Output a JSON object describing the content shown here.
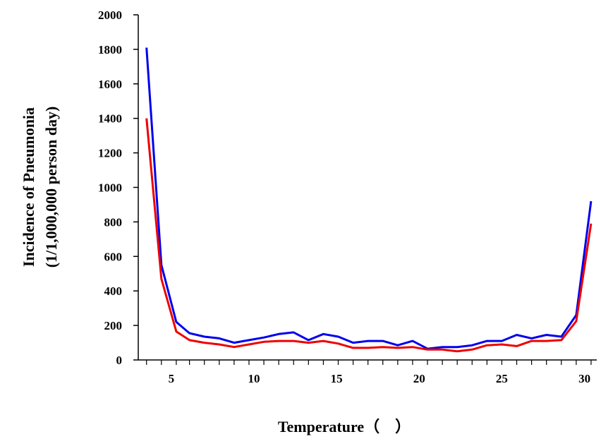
{
  "chart_data": {
    "type": "line",
    "xlabel": "Temperature（　）",
    "ylabel_lines": [
      "Incidence of Pneumonia",
      "(1/1,000,000 person day)"
    ],
    "xlim": [
      3.0,
      31.0
    ],
    "ylim": [
      0,
      2000
    ],
    "xticks": [
      5,
      10,
      15,
      20,
      25,
      30
    ],
    "yticks": [
      0,
      200,
      400,
      600,
      800,
      1000,
      1200,
      1400,
      1600,
      1800,
      2000
    ],
    "grid": false,
    "series": [
      {
        "color": "#0000ee",
        "x": [
          3.5,
          4.4,
          5.3,
          6.1,
          7.0,
          7.9,
          8.8,
          9.7,
          10.6,
          11.5,
          12.4,
          13.3,
          14.2,
          15.1,
          16.0,
          16.9,
          17.8,
          18.7,
          19.6,
          20.5,
          21.4,
          22.3,
          23.2,
          24.1,
          25.0,
          25.9,
          26.8,
          27.7,
          28.6,
          29.5,
          30.4
        ],
        "y": [
          1810,
          550,
          220,
          155,
          135,
          125,
          100,
          115,
          130,
          150,
          160,
          115,
          150,
          135,
          100,
          110,
          110,
          85,
          110,
          65,
          75,
          75,
          85,
          110,
          110,
          145,
          125,
          145,
          135,
          260,
          920
        ]
      },
      {
        "color": "#ee0000",
        "x": [
          3.5,
          4.4,
          5.3,
          6.1,
          7.0,
          7.9,
          8.8,
          9.7,
          10.6,
          11.5,
          12.4,
          13.3,
          14.2,
          15.1,
          16.0,
          16.9,
          17.8,
          18.7,
          19.6,
          20.5,
          21.4,
          22.3,
          23.2,
          24.1,
          25.0,
          25.9,
          26.8,
          27.7,
          28.6,
          29.5,
          30.4
        ],
        "y": [
          1400,
          470,
          165,
          115,
          100,
          90,
          75,
          90,
          105,
          110,
          110,
          100,
          110,
          95,
          70,
          70,
          75,
          70,
          75,
          60,
          60,
          50,
          60,
          85,
          90,
          80,
          110,
          110,
          115,
          225,
          790
        ]
      }
    ]
  }
}
